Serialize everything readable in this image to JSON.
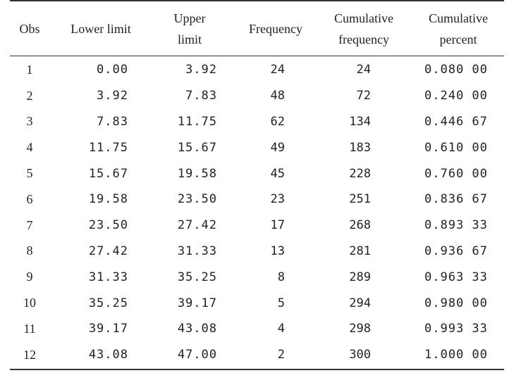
{
  "headers": {
    "obs": "Obs",
    "lower": "Lower limit",
    "upper": "Upper limit",
    "frequency": "Frequency",
    "cum_freq": "Cumulative frequency",
    "cum_pct": "Cumulative percent"
  },
  "rows": [
    [
      "1",
      "0.00",
      "3.92",
      "24",
      "24",
      "0.080 00"
    ],
    [
      "2",
      "3.92",
      "7.83",
      "48",
      "72",
      "0.240 00"
    ],
    [
      "3",
      "7.83",
      "11.75",
      "62",
      "134",
      "0.446 67"
    ],
    [
      "4",
      "11.75",
      "15.67",
      "49",
      "183",
      "0.610 00"
    ],
    [
      "5",
      "15.67",
      "19.58",
      "45",
      "228",
      "0.760 00"
    ],
    [
      "6",
      "19.58",
      "23.50",
      "23",
      "251",
      "0.836 67"
    ],
    [
      "7",
      "23.50",
      "27.42",
      "17",
      "268",
      "0.893 33"
    ],
    [
      "8",
      "27.42",
      "31.33",
      "13",
      "281",
      "0.936 67"
    ],
    [
      "9",
      "31.33",
      "35.25",
      "8",
      "289",
      "0.963 33"
    ],
    [
      "10",
      "35.25",
      "39.17",
      "5",
      "294",
      "0.980 00"
    ],
    [
      "11",
      "39.17",
      "43.08",
      "4",
      "298",
      "0.993 33"
    ],
    [
      "12",
      "43.08",
      "47.00",
      "2",
      "300",
      "1.000 00"
    ]
  ]
}
